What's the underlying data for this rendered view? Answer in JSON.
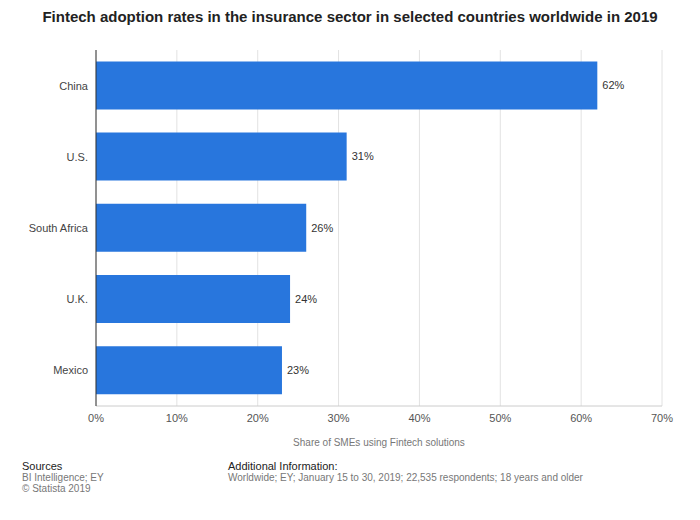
{
  "chart_data": {
    "type": "bar",
    "orientation": "horizontal",
    "title": "Fintech adoption rates in the insurance sector in selected countries worldwide in 2019",
    "xlabel": "Share of SMEs using Fintech solutions",
    "categories": [
      "China",
      "U.S.",
      "South Africa",
      "U.K.",
      "Mexico"
    ],
    "values": [
      62,
      31,
      26,
      24,
      23
    ],
    "value_labels": [
      "62%",
      "31%",
      "26%",
      "24%",
      "23%"
    ],
    "data_labels": true,
    "color": "#2876dd",
    "xlim": [
      0,
      70
    ],
    "xticks": [
      {
        "value": 0,
        "label": "0%"
      },
      {
        "value": 10,
        "label": "10%"
      },
      {
        "value": 20,
        "label": "20%"
      },
      {
        "value": 30,
        "label": "30%"
      },
      {
        "value": 40,
        "label": "40%"
      },
      {
        "value": 50,
        "label": "50%"
      },
      {
        "value": 60,
        "label": "60%"
      },
      {
        "value": 70,
        "label": "70%"
      }
    ],
    "grid": true,
    "sources": {
      "heading": "Sources",
      "lines": [
        "BI Intelligence; EY",
        "© Statista 2019"
      ]
    },
    "additional_information": {
      "heading": "Additional Information:",
      "lines": [
        "Worldwide; EY; January 15 to 30, 2019; 22,535 respondents; 18 years and older"
      ]
    }
  }
}
